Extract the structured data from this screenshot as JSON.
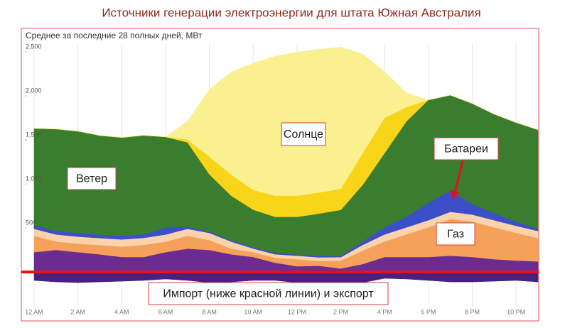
{
  "chart_data": {
    "type": "stacked-area",
    "title": "Источники генерации электроэнергии для штата Южная Австралия",
    "subtitle": "Среднее за последние 28 полных дней, МВт",
    "x": [
      0,
      1,
      2,
      3,
      4,
      5,
      6,
      7,
      8,
      9,
      10,
      11,
      12,
      13,
      14,
      15,
      16,
      17,
      18,
      19,
      20,
      21,
      22,
      23
    ],
    "xlim": [
      0,
      23
    ],
    "xticks": [
      {
        "value": 0,
        "label": "12 AM"
      },
      {
        "value": 2,
        "label": "2 AM"
      },
      {
        "value": 4,
        "label": "4 AM"
      },
      {
        "value": 6,
        "label": "6 AM"
      },
      {
        "value": 8,
        "label": "8 AM"
      },
      {
        "value": 10,
        "label": "10 AM"
      },
      {
        "value": 12,
        "label": "12 PM"
      },
      {
        "value": 14,
        "label": "2 PM"
      },
      {
        "value": 16,
        "label": "4 PM"
      },
      {
        "value": 18,
        "label": "6 PM"
      },
      {
        "value": 20,
        "label": "8 PM"
      },
      {
        "value": 22,
        "label": "10 PM"
      }
    ],
    "ylim": [
      -300,
      2600
    ],
    "yticks": [
      500,
      {
        "value": 1000,
        "label": "1,000"
      },
      {
        "value": 1500,
        "label": "1,500"
      },
      {
        "value": 2000,
        "label": "2,000"
      },
      {
        "value": 2500,
        "label": "2,500"
      }
    ],
    "grid": true,
    "zero_line_color": "#e8101a",
    "series": [
      {
        "name": "Импорт (ниже красной линии) и экспорт",
        "color": "#4b1f7c",
        "values": [
          -96,
          -113,
          -121,
          -113,
          -105,
          -96,
          -80,
          -96,
          -121,
          -113,
          -96,
          -96,
          -121,
          -137,
          -153,
          -121,
          -72,
          -80,
          -96,
          -113,
          -113,
          -105,
          -96,
          -113
        ]
      },
      {
        "color": "#6b2b91",
        "values": [
          225,
          250,
          225,
          200,
          170,
          170,
          225,
          265,
          250,
          200,
          170,
          105,
          65,
          70,
          40,
          90,
          170,
          170,
          170,
          185,
          170,
          145,
          130,
          120
        ]
      },
      {
        "name": "Газ",
        "color": "#f5a15a",
        "values": [
          185,
          96,
          96,
          105,
          120,
          137,
          120,
          145,
          113,
          64,
          56,
          56,
          80,
          56,
          88,
          153,
          177,
          257,
          338,
          418,
          402,
          362,
          314,
          265
        ]
      },
      {
        "color": "#fbd2ab",
        "values": [
          80,
          80,
          80,
          80,
          80,
          80,
          80,
          80,
          80,
          80,
          40,
          40,
          40,
          40,
          40,
          64,
          80,
          80,
          80,
          80,
          80,
          80,
          80,
          80
        ]
      },
      {
        "name": "Батареи",
        "color": "#3b4fc8",
        "values": [
          40,
          40,
          40,
          40,
          40,
          40,
          80,
          25,
          15,
          15,
          15,
          15,
          15,
          15,
          15,
          40,
          80,
          120,
          200,
          240,
          120,
          80,
          48,
          25
        ]
      },
      {
        "name": "Ветер",
        "color": "#3a7d2f",
        "values": [
          1101,
          1158,
          1158,
          1125,
          1117,
          1125,
          1029,
          957,
          651,
          506,
          426,
          410,
          426,
          482,
          522,
          643,
          844,
          1085,
          1166,
          1085,
          1141,
          1125,
          1125,
          1125
        ]
      },
      {
        "color": "#f8d518",
        "values": [
          0,
          0,
          0,
          0,
          0,
          0,
          0,
          32,
          200,
          240,
          225,
          240,
          240,
          240,
          240,
          360,
          400,
          160,
          0,
          0,
          0,
          0,
          0,
          0
        ]
      },
      {
        "name": "Солнце",
        "color": "#fbf08f",
        "values": [
          0,
          0,
          0,
          0,
          0,
          0,
          0,
          209,
          764,
          1166,
          1439,
          1584,
          1632,
          1624,
          1608,
          1125,
          523,
          161,
          0,
          0,
          0,
          0,
          0,
          0
        ]
      }
    ]
  }
}
